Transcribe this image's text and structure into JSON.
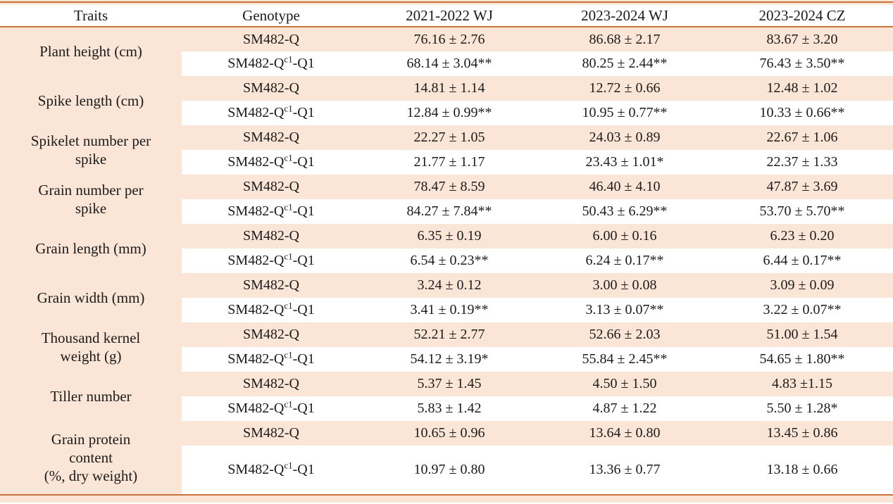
{
  "colors": {
    "band_fill": "#fbe5d6",
    "rule_orange": "#c9723a",
    "text": "#1b1b1b",
    "alt_row": "#ffffff"
  },
  "table": {
    "columns": [
      "Traits",
      "Genotype",
      "2021-2022 WJ",
      "2023-2024 WJ",
      "2023-2024 CZ"
    ],
    "groups": [
      {
        "trait_lines": [
          "Plant height (cm)"
        ],
        "rows": [
          {
            "genotype": [
              {
                "t": "SM482-Q"
              }
            ],
            "values": [
              "76.16 ± 2.76",
              "86.68 ± 2.17",
              "83.67 ± 3.20"
            ]
          },
          {
            "genotype": [
              {
                "t": "SM482-Q"
              },
              {
                "t": "c1",
                "sup": true
              },
              {
                "t": "-Q1"
              }
            ],
            "values": [
              "68.14 ± 3.04**",
              "80.25 ± 2.44**",
              "76.43 ± 3.50**"
            ]
          }
        ]
      },
      {
        "trait_lines": [
          "Spike length (cm)"
        ],
        "rows": [
          {
            "genotype": [
              {
                "t": "SM482-Q"
              }
            ],
            "values": [
              "14.81 ± 1.14",
              "12.72 ± 0.66",
              "12.48 ± 1.02"
            ]
          },
          {
            "genotype": [
              {
                "t": "SM482-Q"
              },
              {
                "t": "c1",
                "sup": true
              },
              {
                "t": "-Q1"
              }
            ],
            "values": [
              "12.84 ± 0.99**",
              "10.95 ± 0.77**",
              "10.33 ± 0.66**"
            ]
          }
        ]
      },
      {
        "trait_lines": [
          "Spikelet number per",
          "spike"
        ],
        "rows": [
          {
            "genotype": [
              {
                "t": "SM482-Q"
              }
            ],
            "values": [
              "22.27 ± 1.05",
              "24.03 ± 0.89",
              "22.67 ± 1.06"
            ]
          },
          {
            "genotype": [
              {
                "t": "SM482-Q"
              },
              {
                "t": "c1",
                "sup": true
              },
              {
                "t": "-Q1"
              }
            ],
            "values": [
              "21.77 ± 1.17",
              "23.43 ± 1.01*",
              "22.37 ± 1.33"
            ]
          }
        ]
      },
      {
        "trait_lines": [
          "Grain number per",
          "spike"
        ],
        "rows": [
          {
            "genotype": [
              {
                "t": "SM482-Q"
              }
            ],
            "values": [
              "78.47 ± 8.59",
              "46.40 ± 4.10",
              "47.87 ± 3.69"
            ]
          },
          {
            "genotype": [
              {
                "t": "SM482-Q"
              },
              {
                "t": "c1",
                "sup": true
              },
              {
                "t": "-Q1"
              }
            ],
            "values": [
              "84.27 ± 7.84**",
              "50.43 ± 6.29**",
              "53.70 ± 5.70**"
            ]
          }
        ]
      },
      {
        "trait_lines": [
          "Grain length (mm)"
        ],
        "rows": [
          {
            "genotype": [
              {
                "t": "SM482-Q"
              }
            ],
            "values": [
              "6.35 ± 0.19",
              "6.00 ± 0.16",
              "6.23 ± 0.20"
            ]
          },
          {
            "genotype": [
              {
                "t": "SM482-Q"
              },
              {
                "t": "c1",
                "sup": true
              },
              {
                "t": "-Q1"
              }
            ],
            "values": [
              "6.54 ± 0.23**",
              "6.24 ± 0.17**",
              "6.44 ± 0.17**"
            ]
          }
        ]
      },
      {
        "trait_lines": [
          "Grain width (mm)"
        ],
        "rows": [
          {
            "genotype": [
              {
                "t": "SM482-Q"
              }
            ],
            "values": [
              "3.24 ± 0.12",
              "3.00 ± 0.08",
              "3.09 ± 0.09"
            ]
          },
          {
            "genotype": [
              {
                "t": "SM482-Q"
              },
              {
                "t": "c1",
                "sup": true
              },
              {
                "t": "-Q1"
              }
            ],
            "values": [
              "3.41 ± 0.19**",
              "3.13 ± 0.07**",
              "3.22 ± 0.07**"
            ]
          }
        ]
      },
      {
        "trait_lines": [
          "Thousand kernel",
          "weight (g)"
        ],
        "rows": [
          {
            "genotype": [
              {
                "t": "SM482-Q"
              }
            ],
            "values": [
              "52.21 ± 2.77",
              "52.66 ± 2.03",
              "51.00 ± 1.54"
            ]
          },
          {
            "genotype": [
              {
                "t": "SM482-Q"
              },
              {
                "t": "c1",
                "sup": true
              },
              {
                "t": "-Q1"
              }
            ],
            "values": [
              "54.12 ± 3.19*",
              "55.84 ± 2.45**",
              "54.65 ± 1.80**"
            ]
          }
        ]
      },
      {
        "trait_lines": [
          "Tiller number"
        ],
        "rows": [
          {
            "genotype": [
              {
                "t": "SM482-Q"
              }
            ],
            "values": [
              "5.37 ± 1.45",
              "4.50 ± 1.50",
              "4.83 ±1.15"
            ]
          },
          {
            "genotype": [
              {
                "t": "SM482-Q"
              },
              {
                "t": "c1",
                "sup": true
              },
              {
                "t": "-Q1"
              }
            ],
            "values": [
              "5.83 ± 1.42",
              "4.87 ± 1.22",
              "5.50 ± 1.28*"
            ]
          }
        ]
      },
      {
        "trait_lines": [
          "Grain protein",
          "content",
          "(%, dry weight)"
        ],
        "rows": [
          {
            "genotype": [
              {
                "t": "SM482-Q"
              }
            ],
            "values": [
              "10.65 ± 0.96",
              "13.64 ± 0.80",
              "13.45 ± 0.86"
            ]
          },
          {
            "genotype": [
              {
                "t": "SM482-Q"
              },
              {
                "t": "c1",
                "sup": true
              },
              {
                "t": "-Q1"
              }
            ],
            "values": [
              "10.97 ± 0.80",
              "13.36 ± 0.77",
              "13.18 ± 0.66"
            ]
          }
        ]
      }
    ]
  }
}
